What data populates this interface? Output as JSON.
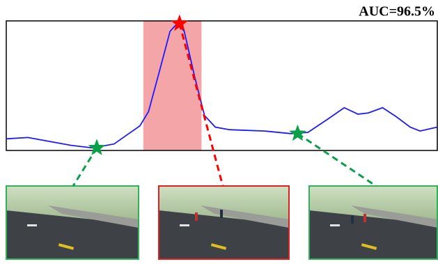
{
  "chart_data": {
    "type": "line",
    "title": "AUC=96.5%",
    "x": [
      0,
      5,
      10,
      15,
      20,
      25,
      28,
      31,
      33,
      35.6,
      38,
      39.7,
      41.3,
      43.7,
      46,
      48.5,
      51.8,
      60,
      66,
      70,
      74.5,
      78.4,
      81.6,
      84,
      87.3,
      90.5,
      93.7,
      96,
      100
    ],
    "values": [
      0.09,
      0.1,
      0.07,
      0.04,
      0.02,
      0.05,
      0.12,
      0.19,
      0.3,
      0.62,
      0.92,
      0.98,
      0.92,
      0.57,
      0.27,
      0.18,
      0.16,
      0.15,
      0.13,
      0.14,
      0.24,
      0.33,
      0.28,
      0.29,
      0.33,
      0.26,
      0.18,
      0.15,
      0.18
    ],
    "color": "#1a1aff",
    "xlim": [
      0,
      100
    ],
    "ylim": [
      0,
      1
    ],
    "shaded_region": [
      31.8,
      45.3
    ],
    "shaded_color": "#f4a5a8",
    "markers": [
      {
        "x": 21,
        "y": 0.02,
        "color": "#0aa04a"
      },
      {
        "x": 40.2,
        "y": 0.98,
        "color": "#ff0000"
      },
      {
        "x": 67.6,
        "y": 0.13,
        "color": "#0aa04a"
      }
    ]
  }
}
